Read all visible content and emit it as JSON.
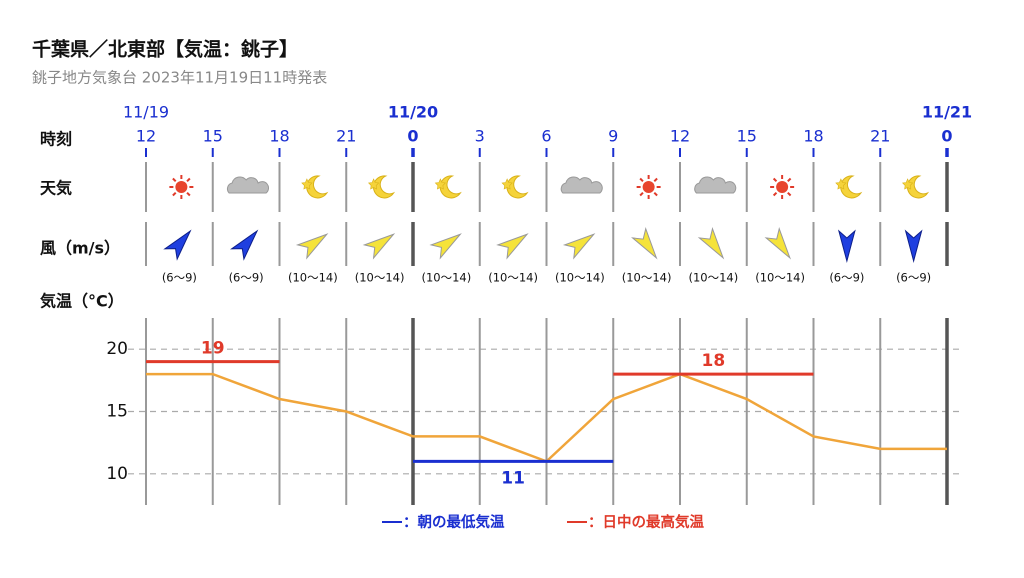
{
  "chart_data": {
    "type": "line",
    "title": "千葉県／北東部【気温：銚子】",
    "subtitle": "銚子地方気象台 2023年11月19日11時発表",
    "row_labels": {
      "time": "時刻",
      "weather": "天気",
      "wind": "風（m/s）",
      "temp": "気温（°C）"
    },
    "dates": [
      "11/19",
      null,
      null,
      null,
      "11/20",
      null,
      null,
      null,
      null,
      null,
      null,
      null,
      "11/21"
    ],
    "categories": [
      "12",
      "15",
      "18",
      "21",
      "0",
      "3",
      "6",
      "9",
      "12",
      "15",
      "18",
      "21",
      "0"
    ],
    "wind": [
      "(6〜9)",
      "(6〜9)",
      "(10〜14)",
      "(10〜14)",
      "(10〜14)",
      "(10〜14)",
      "(10〜14)",
      "(10〜14)",
      "(10〜14)",
      "(10〜14)",
      "(6〜9)",
      "(6〜9)"
    ],
    "series": [
      {
        "name": "気温",
        "color": "#f0a53a",
        "values": [
          18,
          18,
          16,
          15,
          13,
          13,
          11,
          16,
          18,
          16,
          13,
          12,
          12
        ]
      },
      {
        "name": "：朝の最低気温",
        "color": "#1a2fd0",
        "values": [
          null,
          null,
          null,
          null,
          11,
          11,
          11,
          11,
          null,
          null,
          null,
          null,
          null
        ]
      },
      {
        "name": "：日中の最高気温",
        "color": "#e03a2a",
        "values": [
          19,
          19,
          19,
          null,
          null,
          null,
          null,
          18,
          18,
          18,
          18,
          null,
          null
        ]
      }
    ],
    "ylim": [
      7.5,
      22.5
    ],
    "yticks": [
      10,
      15,
      20
    ],
    "grid": true
  }
}
